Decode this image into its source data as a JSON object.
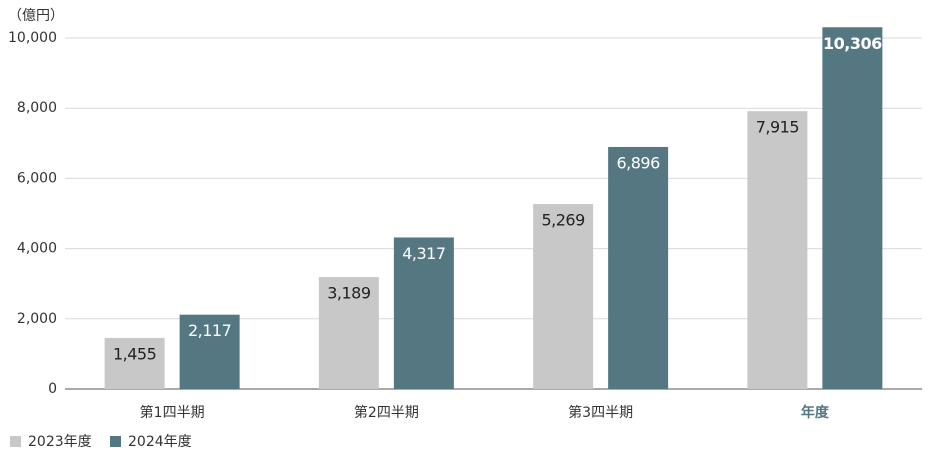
{
  "chart_data": {
    "type": "bar",
    "y_label": "（億円）",
    "categories": [
      "第1四半期",
      "第2四半期",
      "第3四半期",
      "年度"
    ],
    "category_label_colors": [
      "#333333",
      "#333333",
      "#333333",
      "#557782"
    ],
    "series": [
      {
        "name": "2023年度",
        "color": "#c8c8c8",
        "label_color": "#222222",
        "values": [
          1455,
          3189,
          5269,
          7915
        ],
        "value_labels": [
          "1,455",
          "3,189",
          "5,269",
          "7,915"
        ]
      },
      {
        "name": "2024年度",
        "color": "#557782",
        "label_color": "#ffffff",
        "values": [
          2117,
          4317,
          6896,
          10306
        ],
        "value_labels": [
          "2,117",
          "4,317",
          "6,896",
          "10,306"
        ]
      }
    ],
    "ylim": [
      0,
      10000
    ],
    "yticks": [
      0,
      {
        "value": 2000,
        "label": "2,000"
      },
      {
        "value": 4000,
        "label": "4,000"
      },
      {
        "value": 6000,
        "label": "6,000"
      },
      {
        "value": 8000,
        "label": "8,000"
      },
      {
        "value": 10000,
        "label": "10,000"
      }
    ],
    "grid": true,
    "legend": "bottom-left"
  }
}
